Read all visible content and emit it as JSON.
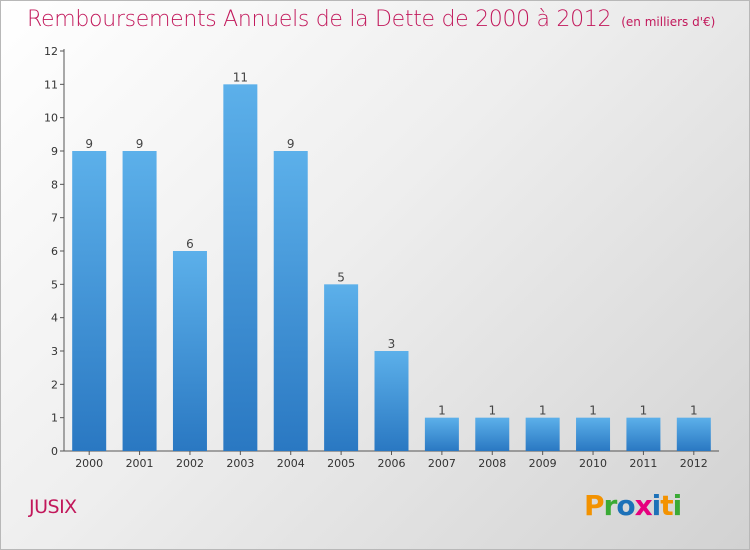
{
  "title": "Remboursements Annuels de la Dette de 2000 à 2012",
  "unit": "(en milliers d'€)",
  "commune": "JUSIX",
  "brand": {
    "letters": [
      "P",
      "r",
      "o",
      "x",
      "i",
      "t",
      "i"
    ],
    "colors": [
      "#f39200",
      "#3aaa35",
      "#1d71b8",
      "#e6007e",
      "#1d71b8",
      "#f39200",
      "#3aaa35"
    ]
  },
  "colors": {
    "bar": "#3d93d6",
    "title": "#c2185b"
  },
  "chart_data": {
    "type": "bar",
    "title": "Remboursements Annuels de la Dette de 2000 à 2012",
    "categories": [
      "2000",
      "2001",
      "2002",
      "2003",
      "2004",
      "2005",
      "2006",
      "2007",
      "2008",
      "2009",
      "2010",
      "2011",
      "2012"
    ],
    "values": [
      9,
      9,
      6,
      11,
      9,
      5,
      3,
      1,
      1,
      1,
      1,
      1,
      1
    ],
    "data_labels": [
      "9",
      "9",
      "6",
      "11",
      "9",
      "5",
      "3",
      "1",
      "1",
      "1",
      "1",
      "1",
      "1"
    ],
    "ylim": [
      0,
      12
    ],
    "yticks": [
      0,
      1,
      2,
      3,
      4,
      5,
      6,
      7,
      8,
      9,
      10,
      11,
      12
    ],
    "ytick_labels": [
      "0",
      "1",
      "2",
      "3",
      "4",
      "5",
      "6",
      "7",
      "8",
      "9",
      "10",
      "11",
      "12"
    ],
    "grid": false,
    "legend": "none"
  }
}
